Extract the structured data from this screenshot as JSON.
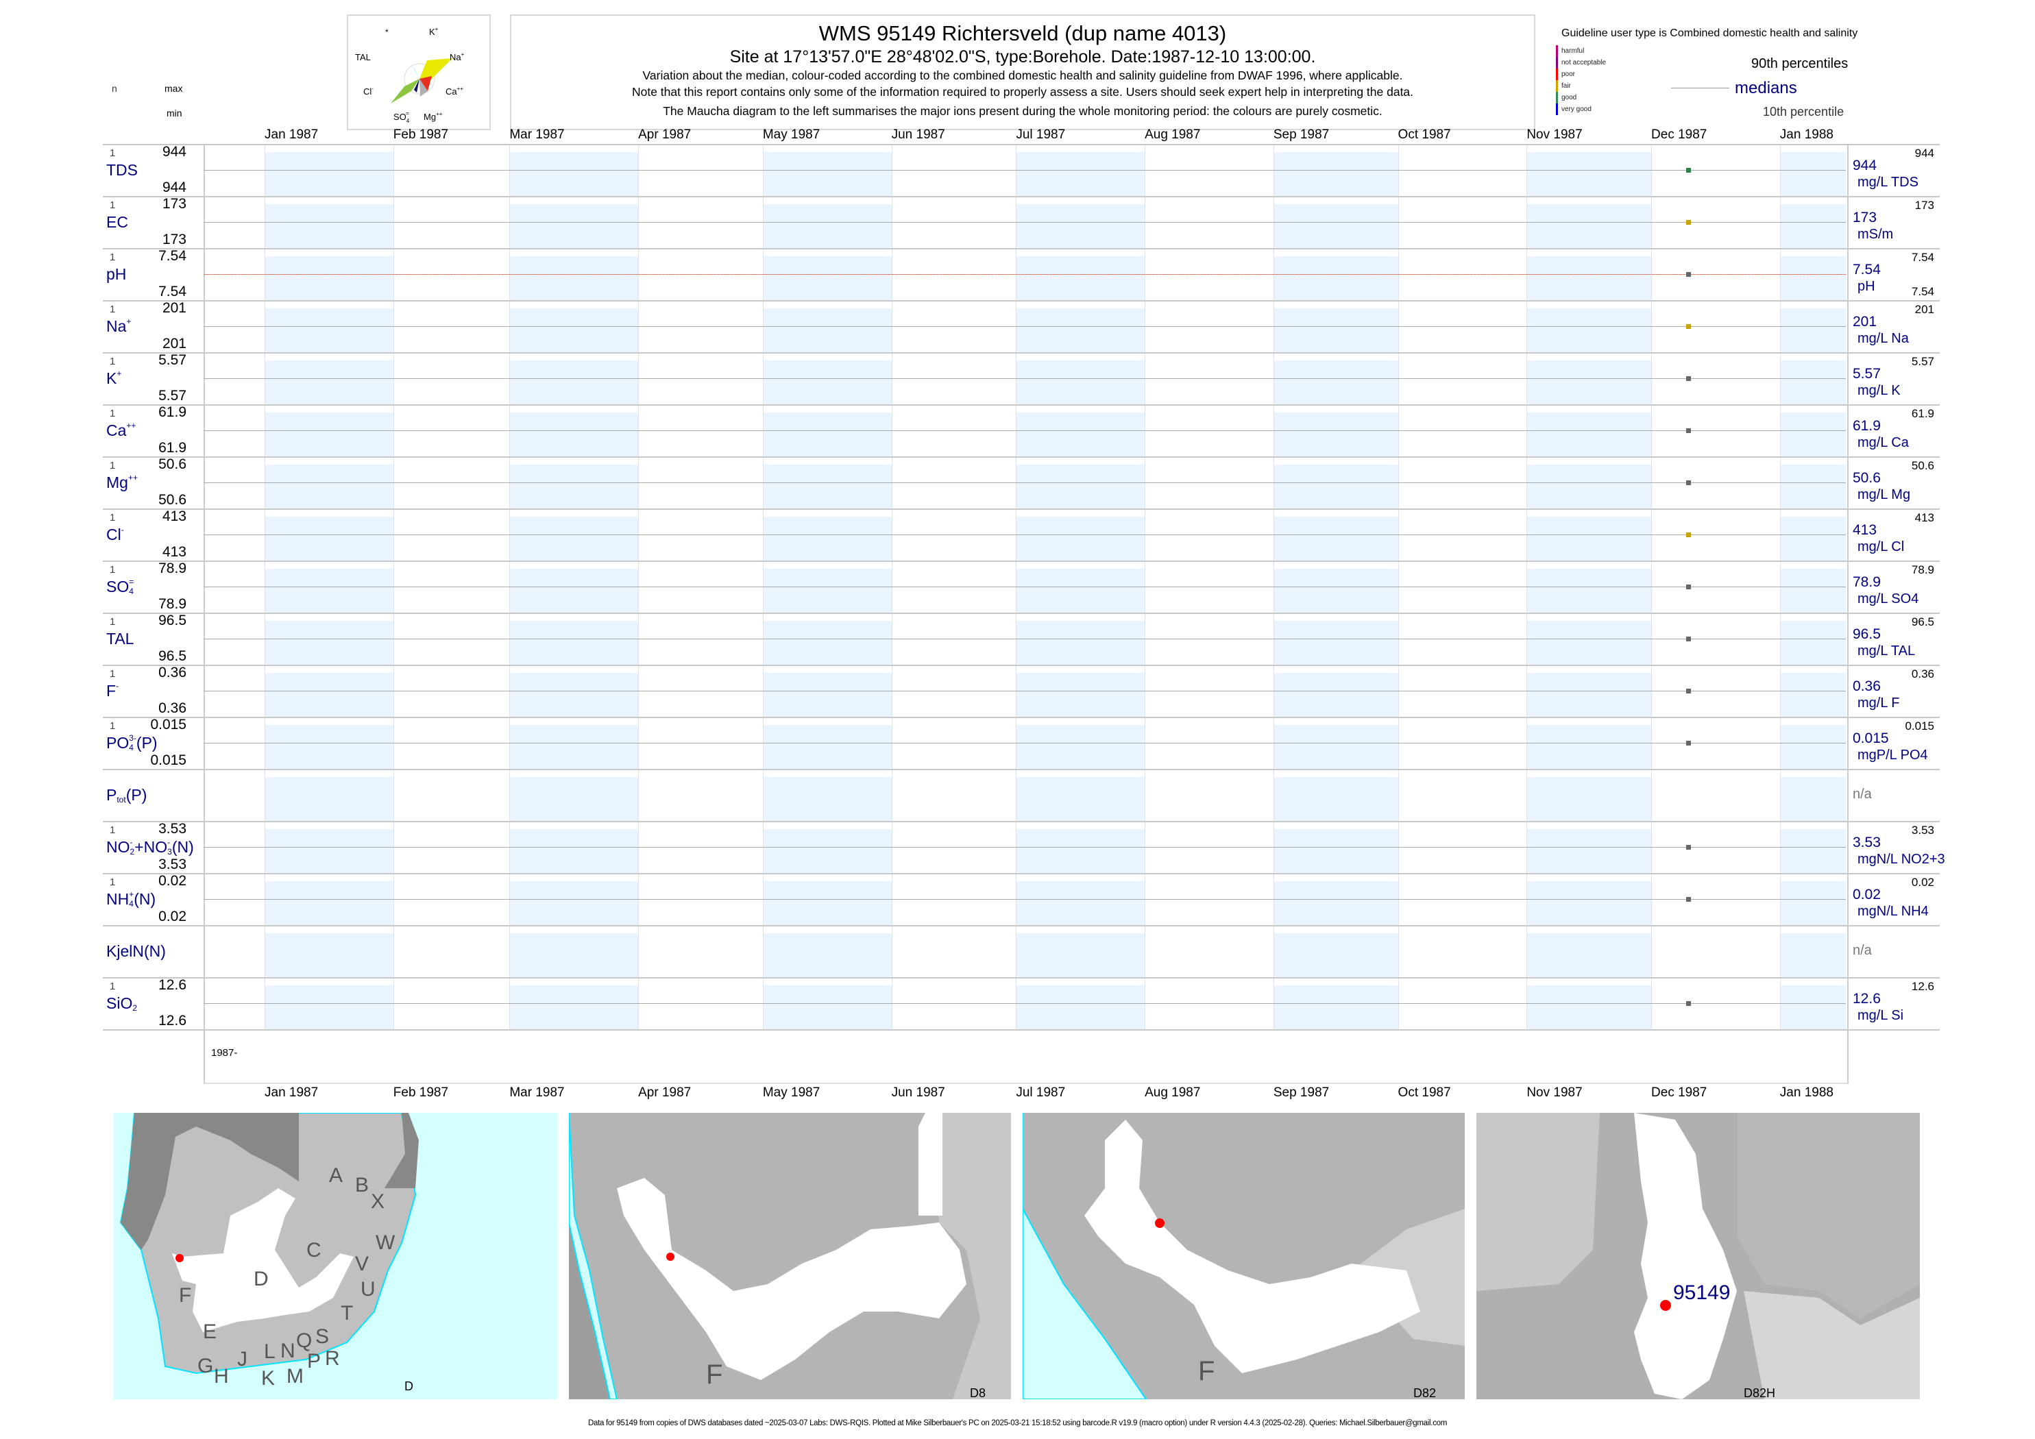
{
  "header": {
    "title": "WMS 95149  Richtersveld (dup name 4013)",
    "subtitle": "Site at 17°13'57.0\"E 28°48'02.0\"S, type:Borehole. Date:1987-12-10 13:00:00.",
    "note1": "Variation about the median,  colour-coded according to the combined domestic health and salinity guideline from DWAF 1996, where applicable.",
    "note2": "Note that this report contains only some of the information required to properly assess a site. Users should seek expert help in interpreting the data.",
    "note3": "The Maucha diagram to the left summarises the major ions present during the whole monitoring period: the colours are purely cosmetic."
  },
  "maucha": {
    "labels": {
      "star": "*",
      "k": "K",
      "k_sup": "+",
      "tal": "TAL",
      "na": "Na",
      "na_sup": "+",
      "cl": "Cl",
      "cl_sup": "-",
      "ca": "Ca",
      "ca_sup": "++",
      "so4": "SO",
      "so4_sub": "4",
      "so4_sup": "=",
      "mg": "Mg",
      "mg_sup": "++"
    },
    "colors": {
      "na": "#e8e800",
      "cl": "#8cc63f",
      "tal": "#40e0f0",
      "ca": "#e83020",
      "mg": "#b0b0b0",
      "so4": "#101060"
    }
  },
  "columns": {
    "n": "n",
    "max": "max",
    "min": "min"
  },
  "legend": {
    "guideline": "Guideline user type is Combined domestic health and salinity",
    "classes": [
      {
        "label": "harmful",
        "color": "#c0007a"
      },
      {
        "label": "not acceptable",
        "color": "#800080"
      },
      {
        "label": "poor",
        "color": "#ff0000"
      },
      {
        "label": "fair",
        "color": "#d4a000"
      },
      {
        "label": "good",
        "color": "#2e8b57"
      },
      {
        "label": "very good",
        "color": "#0000dd"
      }
    ],
    "p90": "90th percentiles",
    "medians": "medians",
    "p10": "10th percentile"
  },
  "chart_data": {
    "type": "scatter",
    "x_axis": {
      "ticks": [
        "Jan 1987",
        "Feb 1987",
        "Mar 1987",
        "Apr 1987",
        "May 1987",
        "Jun 1987",
        "Jul 1987",
        "Aug 1987",
        "Sep 1987",
        "Oct 1987",
        "Nov 1987",
        "Dec 1987",
        "Jan 1988"
      ],
      "range": [
        "1986-12-17",
        "1988-01-16"
      ]
    },
    "year_label": "1987-",
    "sample_date": "1987-12-10",
    "rows": [
      {
        "label": [
          {
            "t": "TDS"
          }
        ],
        "n": "1",
        "max": "944",
        "min": "944",
        "median": "944",
        "unit": "mg/L TDS",
        "value": 944,
        "color": "#2e7d4f"
      },
      {
        "label": [
          {
            "t": "EC"
          }
        ],
        "n": "1",
        "max": "173",
        "min": "173",
        "median": "173",
        "unit": "mS/m",
        "value": 173,
        "color": "#c8a000"
      },
      {
        "label": [
          {
            "t": "pH"
          }
        ],
        "n": "1",
        "max": "7.54",
        "min": "7.54",
        "median": "7.54",
        "unit": "pH",
        "value": 7.54,
        "color": "#666666",
        "right_min": "7.54",
        "guide": true
      },
      {
        "label": [
          {
            "t": "Na"
          },
          {
            "sup": "+"
          }
        ],
        "n": "1",
        "max": "201",
        "min": "201",
        "median": "201",
        "unit": "mg/L Na",
        "value": 201,
        "color": "#c8a000"
      },
      {
        "label": [
          {
            "t": "K"
          },
          {
            "sup": "+"
          }
        ],
        "n": "1",
        "max": "5.57",
        "min": "5.57",
        "median": "5.57",
        "unit": "mg/L K",
        "value": 5.57,
        "color": "#666666"
      },
      {
        "label": [
          {
            "t": "Ca"
          },
          {
            "sup": "++"
          }
        ],
        "n": "1",
        "max": "61.9",
        "min": "61.9",
        "median": "61.9",
        "unit": "mg/L Ca",
        "value": 61.9,
        "color": "#666666"
      },
      {
        "label": [
          {
            "t": "Mg"
          },
          {
            "sup": "++"
          }
        ],
        "n": "1",
        "max": "50.6",
        "min": "50.6",
        "median": "50.6",
        "unit": "mg/L Mg",
        "value": 50.6,
        "color": "#666666"
      },
      {
        "label": [
          {
            "t": "Cl"
          },
          {
            "sup": "-"
          }
        ],
        "n": "1",
        "max": "413",
        "min": "413",
        "median": "413",
        "unit": "mg/L Cl",
        "value": 413,
        "color": "#c8a000"
      },
      {
        "label": [
          {
            "t": "SO"
          },
          {
            "sup": "=",
            "sub": "4"
          }
        ],
        "n": "1",
        "max": "78.9",
        "min": "78.9",
        "median": "78.9",
        "unit": "mg/L SO4",
        "value": 78.9,
        "color": "#666666"
      },
      {
        "label": [
          {
            "t": "TAL"
          }
        ],
        "n": "1",
        "max": "96.5",
        "min": "96.5",
        "median": "96.5",
        "unit": "mg/L TAL",
        "value": 96.5,
        "color": "#666666"
      },
      {
        "label": [
          {
            "t": "F"
          },
          {
            "sup": "-"
          }
        ],
        "n": "1",
        "max": "0.36",
        "min": "0.36",
        "median": "0.36",
        "unit": "mg/L F",
        "value": 0.36,
        "color": "#666666"
      },
      {
        "label": [
          {
            "t": "PO"
          },
          {
            "sup": "3-",
            "sub": "4"
          },
          {
            "t": "(P)"
          }
        ],
        "n": "1",
        "max": "0.015",
        "min": "0.015",
        "median": "0.015",
        "unit": "mgP/L PO4",
        "value": 0.015,
        "color": "#666666"
      },
      {
        "label": [
          {
            "t": "P"
          },
          {
            "sub": "tot"
          },
          {
            "t": "(P)"
          }
        ],
        "na": "n/a"
      },
      {
        "label": [
          {
            "t": "NO"
          },
          {
            "sup": "-",
            "sub": "2"
          },
          {
            "t": "+NO"
          },
          {
            "sup": "-",
            "sub": "3"
          },
          {
            "t": "(N)"
          }
        ],
        "n": "1",
        "max": "3.53",
        "min": "3.53",
        "median": "3.53",
        "unit": "mgN/L NO2+3",
        "value": 3.53,
        "color": "#666666"
      },
      {
        "label": [
          {
            "t": "NH"
          },
          {
            "sup": "+",
            "sub": "4"
          },
          {
            "t": "(N)"
          }
        ],
        "n": "1",
        "max": "0.02",
        "min": "0.02",
        "median": "0.02",
        "unit": "mgN/L NH4",
        "value": 0.02,
        "color": "#666666"
      },
      {
        "label": [
          {
            "t": "KjelN(N)"
          }
        ],
        "na": "n/a"
      },
      {
        "label": [
          {
            "t": "SiO"
          },
          {
            "sub": "2"
          }
        ],
        "n": "1",
        "max": "12.6",
        "min": "12.6",
        "median": "12.6",
        "unit": "mg/L Si",
        "value": 12.6,
        "color": "#666666"
      }
    ]
  },
  "maps": [
    {
      "label": "D",
      "letters": [
        "A",
        "B",
        "X",
        "W",
        "C",
        "V",
        "D",
        "U",
        "F",
        "T",
        "E",
        "S",
        "Q",
        "R",
        "N",
        "L",
        "J",
        "P",
        "G",
        "M",
        "H",
        "K"
      ]
    },
    {
      "label": "D8",
      "letters": [
        "F"
      ]
    },
    {
      "label": "D82",
      "letters": [
        "F"
      ]
    },
    {
      "label": "D82H",
      "site": "95149"
    }
  ],
  "footer": "Data for 95149 from copies of DWS databases dated ~2025-03-07 Labs: DWS-RQIS. Plotted at Mike Silberbauer's PC on 2025-03-21 15:18:52 using barcode.R v19.9 (macro option) under R version 4.4.3 (2025-02-28). Queries: Michael.Silberbauer@gmail.com"
}
